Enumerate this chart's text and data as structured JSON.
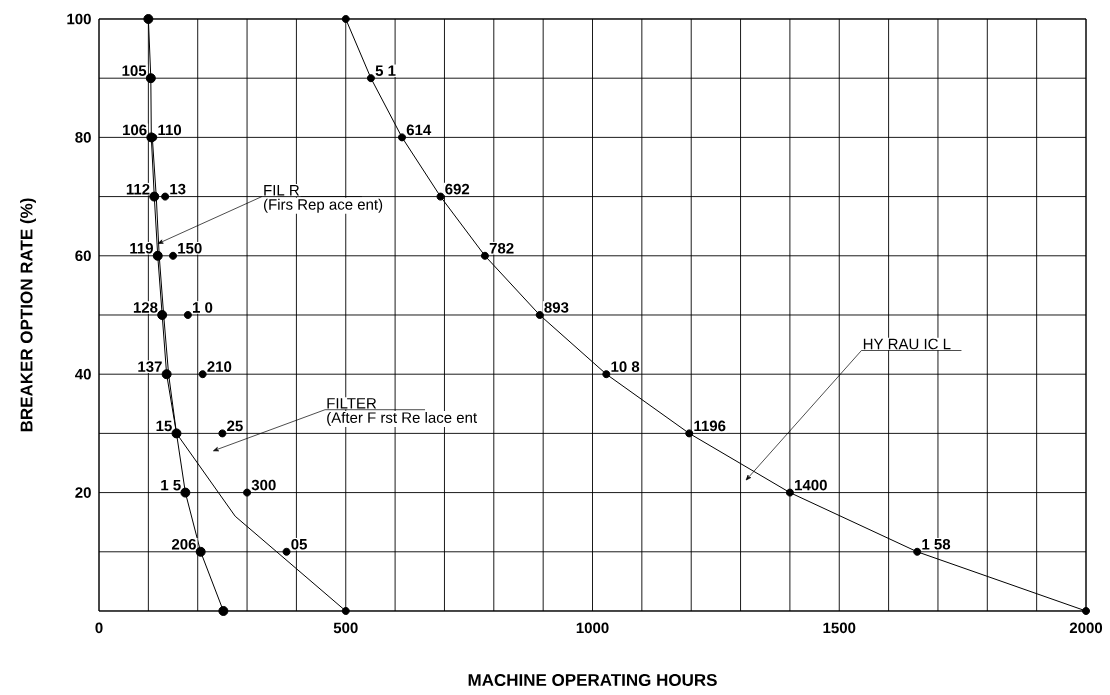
{
  "chart_data": {
    "type": "line",
    "xlabel": "MACHINE OPERATING HOURS",
    "ylabel": "BREAKER OPTION RATE (%)",
    "xlim": [
      0,
      2000
    ],
    "ylim": [
      0,
      100
    ],
    "xticks": [
      0,
      {
        "value": 100,
        "label": null
      },
      {
        "value": 200,
        "label": null
      },
      {
        "value": 300,
        "label": null
      },
      {
        "value": 400,
        "label": null
      },
      500,
      {
        "value": 600,
        "label": null
      },
      {
        "value": 700,
        "label": null
      },
      {
        "value": 800,
        "label": null
      },
      {
        "value": 900,
        "label": null
      },
      1000,
      {
        "value": 1100,
        "label": null
      },
      {
        "value": 1200,
        "label": null
      },
      {
        "value": 1300,
        "label": null
      },
      {
        "value": 1400,
        "label": null
      },
      1500,
      {
        "value": 1600,
        "label": null
      },
      {
        "value": 1700,
        "label": null
      },
      {
        "value": 1800,
        "label": null
      },
      {
        "value": 1900,
        "label": null
      },
      2000
    ],
    "yticks": [
      {
        "value": 0,
        "label": null
      },
      {
        "value": 10,
        "label": null
      },
      20,
      {
        "value": 30,
        "label": null
      },
      40,
      {
        "value": 50,
        "label": null
      },
      60,
      {
        "value": 70,
        "label": null
      },
      80,
      {
        "value": 90,
        "label": null
      },
      100
    ],
    "grid": true,
    "series": [
      {
        "color": "#000000",
        "marker": "circle",
        "x": [
          100,
          105,
          106,
          112,
          119,
          128,
          137,
          157,
          175,
          206,
          252
        ],
        "values": [
          100,
          90,
          80,
          70,
          60,
          50,
          40,
          30,
          20,
          10,
          0
        ]
      },
      {
        "color": "#000000",
        "marker": "none",
        "x": [
          108,
          116,
          122,
          131,
          141,
          157,
          276,
          500
        ],
        "values": [
          80,
          70,
          60,
          50,
          40,
          30,
          16,
          0
        ]
      },
      {
        "type": "scatter",
        "color": "#000000",
        "marker": "circle",
        "x": [
          110,
          134,
          150,
          180,
          210,
          250,
          300,
          380,
          500
        ],
        "values": [
          80,
          70,
          60,
          50,
          40,
          30,
          20,
          10,
          0
        ]
      },
      {
        "color": "#000000",
        "marker": "circle",
        "x": [
          500,
          551,
          614,
          692,
          782,
          893,
          1028,
          1196,
          1400,
          1658,
          2000
        ],
        "values": [
          100,
          90,
          80,
          70,
          60,
          50,
          40,
          30,
          20,
          10,
          0
        ]
      }
    ],
    "annotations": [
      {
        "text": "105",
        "x": 105,
        "y": 90
      },
      {
        "text": "106",
        "x": 106,
        "y": 80
      },
      {
        "text": "112",
        "x": 112,
        "y": 70
      },
      {
        "text": "119",
        "x": 119,
        "y": 60
      },
      {
        "text": "128",
        "x": 128,
        "y": 50
      },
      {
        "text": "137",
        "x": 137,
        "y": 40
      },
      {
        "text": "15",
        "x": 157,
        "y": 30
      },
      {
        "text": "1 5",
        "x": 175,
        "y": 20
      },
      {
        "text": "206",
        "x": 206,
        "y": 10
      },
      {
        "text": "110",
        "x": 110,
        "y": 80
      },
      {
        "text": "13",
        "x": 134,
        "y": 70
      },
      {
        "text": "150",
        "x": 150,
        "y": 60
      },
      {
        "text": "1 0",
        "x": 180,
        "y": 50
      },
      {
        "text": "210",
        "x": 210,
        "y": 40
      },
      {
        "text": "25",
        "x": 250,
        "y": 30
      },
      {
        "text": "300",
        "x": 300,
        "y": 20
      },
      {
        "text": "05",
        "x": 380,
        "y": 10
      },
      {
        "text": "5 1",
        "x": 551,
        "y": 90
      },
      {
        "text": "614",
        "x": 614,
        "y": 80
      },
      {
        "text": "692",
        "x": 692,
        "y": 70
      },
      {
        "text": "782",
        "x": 782,
        "y": 60
      },
      {
        "text": "893",
        "x": 893,
        "y": 50
      },
      {
        "text": "10 8",
        "x": 1028,
        "y": 40
      },
      {
        "text": "1196",
        "x": 1196,
        "y": 30
      },
      {
        "text": "1400",
        "x": 1400,
        "y": 20
      },
      {
        "text": "1 58",
        "x": 1658,
        "y": 10
      },
      {
        "text": "FIL R",
        "x": 118,
        "y": 62
      },
      "(Firs Rep ace ent)",
      "FILTER",
      "(After F rst Re lace ent",
      "HY RAU IC L"
    ]
  }
}
